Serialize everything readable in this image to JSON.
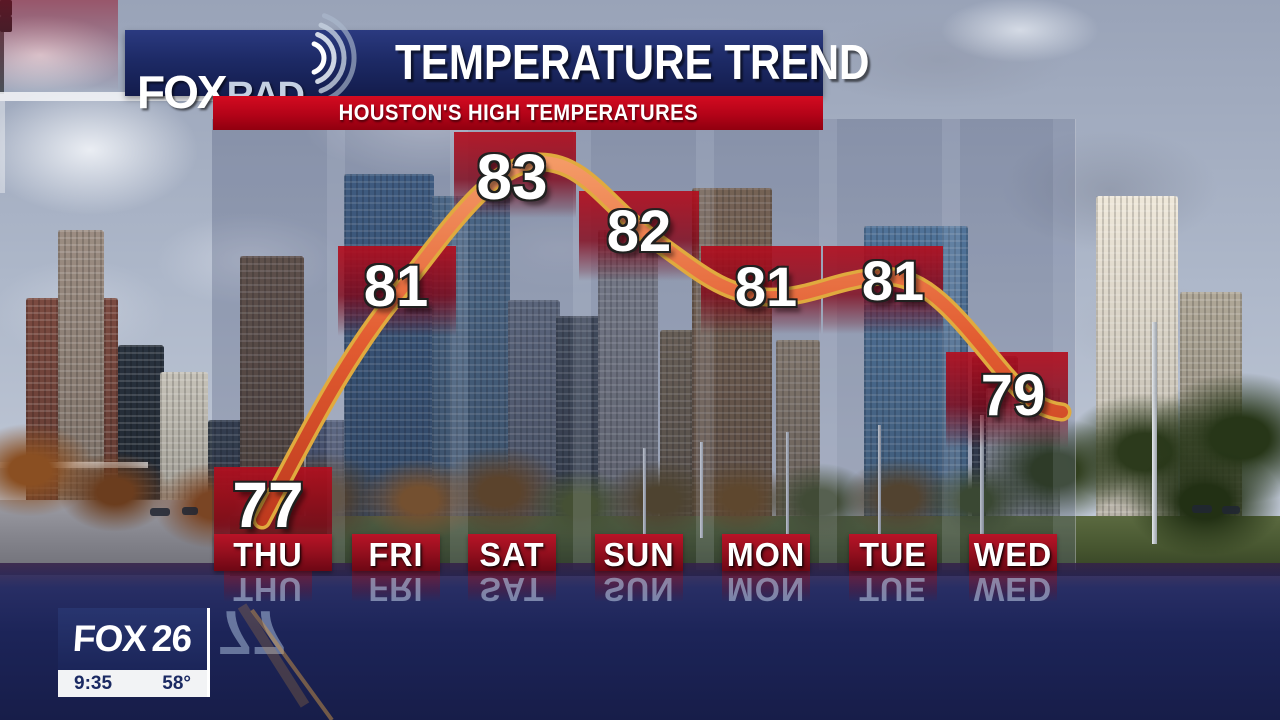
{
  "header": {
    "brand_fox": "FOX",
    "brand_rad": "RAD",
    "radar_icon": "radar-waves-icon",
    "title": "TEMPERATURE TREND",
    "subtitle": "HOUSTON'S HIGH TEMPERATURES"
  },
  "chart_data": {
    "type": "line",
    "title": "TEMPERATURE TREND",
    "subtitle": "HOUSTON'S HIGH TEMPERATURES",
    "categories": [
      "THU",
      "FRI",
      "SAT",
      "SUN",
      "MON",
      "TUE",
      "WED"
    ],
    "values": [
      77,
      81,
      83,
      82,
      81,
      81,
      79
    ],
    "series_name": "Houston daily high temperature",
    "value_labels": true,
    "grid": false,
    "legend_position": "none",
    "line_color": "#e25c31",
    "line_edge_color": "#ecb445",
    "value_bg_color": "#a40e20",
    "label_bar_color": "#98101f"
  },
  "station_bug": {
    "brand": "FOX",
    "channel": "26",
    "time": "9:35",
    "temperature": "58°"
  }
}
